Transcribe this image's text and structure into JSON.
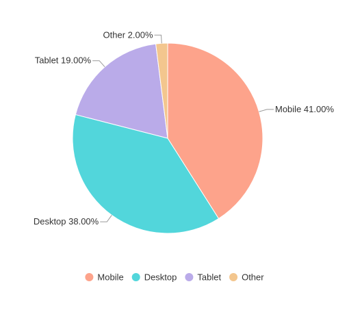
{
  "chart_data": {
    "type": "pie",
    "title": "",
    "categories": [
      "Mobile",
      "Desktop",
      "Tablet",
      "Other"
    ],
    "values": [
      41.0,
      38.0,
      19.0,
      2.0
    ],
    "value_unit": "%",
    "colors": [
      "#FDA38B",
      "#52D6DB",
      "#BAABE9",
      "#F3C68E"
    ],
    "data_labels": [
      "Mobile 41.00%",
      "Desktop 38.00%",
      "Tablet 19.00%",
      "Other 2.00%"
    ],
    "legend": {
      "position": "bottom",
      "entries": [
        "Mobile",
        "Desktop",
        "Tablet",
        "Other"
      ]
    },
    "start": "top",
    "direction": "clockwise"
  }
}
